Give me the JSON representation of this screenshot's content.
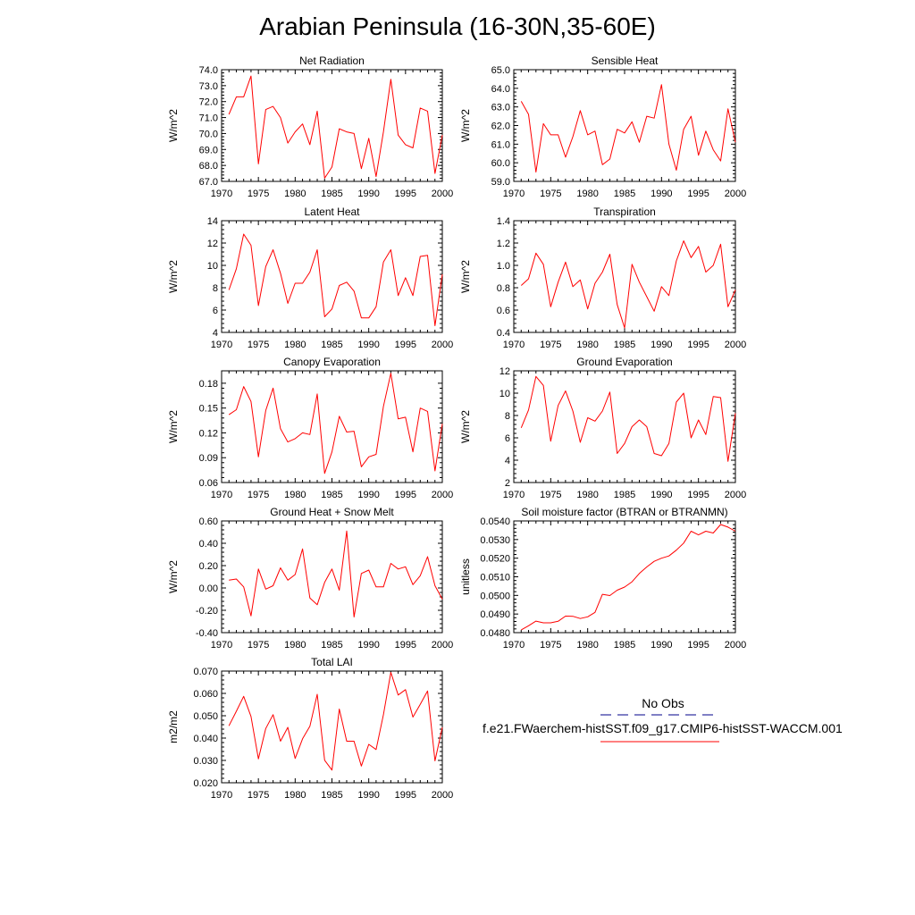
{
  "title": "Arabian Peninsula (16-30N,35-60E)",
  "colors": {
    "model": "#ff0000",
    "obs": "#00008b",
    "axis": "#000000"
  },
  "legend": {
    "obs_label": "No Obs",
    "model_label": "f.e21.FWaerchem-histSST.f09_g17.CMIP6-histSST-WACCM.001"
  },
  "chart_data": [
    {
      "type": "line",
      "title": "Net Radiation",
      "ylabel": "W/m^2",
      "xlim": [
        1970,
        2000
      ],
      "ylim": [
        67.0,
        74.0
      ],
      "xticks": [
        1970,
        1975,
        1980,
        1985,
        1990,
        1995,
        2000
      ],
      "yticks": [
        67.0,
        68.0,
        69.0,
        70.0,
        71.0,
        72.0,
        73.0,
        74.0
      ],
      "ytick_labels": [
        "67.0",
        "68.0",
        "69.0",
        "70.0",
        "71.0",
        "72.0",
        "73.0",
        "74.0"
      ],
      "x": [
        1971,
        1972,
        1973,
        1974,
        1975,
        1976,
        1977,
        1978,
        1979,
        1980,
        1981,
        1982,
        1983,
        1984,
        1985,
        1986,
        1987,
        1988,
        1989,
        1990,
        1991,
        1992,
        1993,
        1994,
        1995,
        1996,
        1997,
        1998,
        1999,
        2000
      ],
      "series": [
        {
          "values": [
            71.2,
            72.3,
            72.3,
            73.6,
            68.1,
            71.5,
            71.7,
            71.0,
            69.4,
            70.1,
            70.6,
            69.3,
            71.4,
            67.2,
            67.9,
            70.3,
            70.1,
            70.0,
            67.8,
            69.7,
            67.3,
            70.1,
            73.4,
            69.9,
            69.3,
            69.1,
            71.6,
            71.4,
            67.5,
            69.9
          ]
        }
      ]
    },
    {
      "type": "line",
      "title": "Sensible Heat",
      "ylabel": "W/m^2",
      "xlim": [
        1970,
        2000
      ],
      "ylim": [
        59.0,
        65.0
      ],
      "xticks": [
        1970,
        1975,
        1980,
        1985,
        1990,
        1995,
        2000
      ],
      "yticks": [
        59.0,
        60.0,
        61.0,
        62.0,
        63.0,
        64.0,
        65.0
      ],
      "ytick_labels": [
        "59.0",
        "60.0",
        "61.0",
        "62.0",
        "63.0",
        "64.0",
        "65.0"
      ],
      "x": [
        1971,
        1972,
        1973,
        1974,
        1975,
        1976,
        1977,
        1978,
        1979,
        1980,
        1981,
        1982,
        1983,
        1984,
        1985,
        1986,
        1987,
        1988,
        1989,
        1990,
        1991,
        1992,
        1993,
        1994,
        1995,
        1996,
        1997,
        1998,
        1999,
        2000
      ],
      "series": [
        {
          "values": [
            63.3,
            62.6,
            59.5,
            62.1,
            61.5,
            61.5,
            60.3,
            61.4,
            62.8,
            61.5,
            61.7,
            59.9,
            60.2,
            61.8,
            61.6,
            62.2,
            61.1,
            62.5,
            62.4,
            64.2,
            61.0,
            59.6,
            61.8,
            62.5,
            60.4,
            61.7,
            60.7,
            60.1,
            62.9,
            61.1
          ]
        }
      ]
    },
    {
      "type": "line",
      "title": "Latent Heat",
      "ylabel": "W/m^2",
      "xlim": [
        1970,
        2000
      ],
      "ylim": [
        4,
        14
      ],
      "xticks": [
        1970,
        1975,
        1980,
        1985,
        1990,
        1995,
        2000
      ],
      "yticks": [
        4,
        6,
        8,
        10,
        12,
        14
      ],
      "ytick_labels": [
        "4",
        "6",
        "8",
        "10",
        "12",
        "14"
      ],
      "x": [
        1971,
        1972,
        1973,
        1974,
        1975,
        1976,
        1977,
        1978,
        1979,
        1980,
        1981,
        1982,
        1983,
        1984,
        1985,
        1986,
        1987,
        1988,
        1989,
        1990,
        1991,
        1992,
        1993,
        1994,
        1995,
        1996,
        1997,
        1998,
        1999,
        2000
      ],
      "series": [
        {
          "values": [
            7.8,
            9.7,
            12.8,
            11.8,
            6.4,
            9.9,
            11.4,
            9.3,
            6.6,
            8.4,
            8.4,
            9.4,
            11.4,
            5.4,
            6.1,
            8.2,
            8.5,
            7.7,
            5.3,
            5.3,
            6.3,
            10.3,
            11.4,
            7.3,
            8.9,
            7.3,
            10.8,
            10.9,
            4.6,
            9.2
          ]
        }
      ]
    },
    {
      "type": "line",
      "title": "Transpiration",
      "ylabel": "W/m^2",
      "xlim": [
        1970,
        2000
      ],
      "ylim": [
        0.4,
        1.4
      ],
      "xticks": [
        1970,
        1975,
        1980,
        1985,
        1990,
        1995,
        2000
      ],
      "yticks": [
        0.4,
        0.6,
        0.8,
        1.0,
        1.2,
        1.4
      ],
      "ytick_labels": [
        "0.4",
        "0.6",
        "0.8",
        "1.0",
        "1.2",
        "1.4"
      ],
      "x": [
        1971,
        1972,
        1973,
        1974,
        1975,
        1976,
        1977,
        1978,
        1979,
        1980,
        1981,
        1982,
        1983,
        1984,
        1985,
        1986,
        1987,
        1988,
        1989,
        1990,
        1991,
        1992,
        1993,
        1994,
        1995,
        1996,
        1997,
        1998,
        1999,
        2000
      ],
      "series": [
        {
          "values": [
            0.82,
            0.88,
            1.11,
            1.01,
            0.63,
            0.85,
            1.03,
            0.81,
            0.87,
            0.61,
            0.84,
            0.94,
            1.1,
            0.65,
            0.44,
            1.01,
            0.85,
            0.72,
            0.59,
            0.81,
            0.73,
            1.04,
            1.22,
            1.07,
            1.17,
            0.94,
            1.0,
            1.19,
            0.63,
            0.78
          ]
        }
      ]
    },
    {
      "type": "line",
      "title": "Canopy Evaporation",
      "ylabel": "W/m^2",
      "xlim": [
        1970,
        2000
      ],
      "ylim": [
        0.06,
        0.195
      ],
      "xticks": [
        1970,
        1975,
        1980,
        1985,
        1990,
        1995,
        2000
      ],
      "yticks": [
        0.06,
        0.09,
        0.12,
        0.15,
        0.18
      ],
      "ytick_labels": [
        "0.06",
        "0.09",
        "0.12",
        "0.15",
        "0.18"
      ],
      "x": [
        1971,
        1972,
        1973,
        1974,
        1975,
        1976,
        1977,
        1978,
        1979,
        1980,
        1981,
        1982,
        1983,
        1984,
        1985,
        1986,
        1987,
        1988,
        1989,
        1990,
        1991,
        1992,
        1993,
        1994,
        1995,
        1996,
        1997,
        1998,
        1999,
        2000
      ],
      "series": [
        {
          "values": [
            0.142,
            0.148,
            0.176,
            0.158,
            0.091,
            0.147,
            0.174,
            0.125,
            0.109,
            0.113,
            0.12,
            0.118,
            0.167,
            0.071,
            0.097,
            0.14,
            0.121,
            0.122,
            0.079,
            0.091,
            0.094,
            0.152,
            0.192,
            0.137,
            0.139,
            0.097,
            0.15,
            0.146,
            0.074,
            0.131
          ]
        }
      ]
    },
    {
      "type": "line",
      "title": "Ground Evaporation",
      "ylabel": "W/m^2",
      "xlim": [
        1970,
        2000
      ],
      "ylim": [
        2,
        12
      ],
      "xticks": [
        1970,
        1975,
        1980,
        1985,
        1990,
        1995,
        2000
      ],
      "yticks": [
        2,
        4,
        6,
        8,
        10,
        12
      ],
      "ytick_labels": [
        "2",
        "4",
        "6",
        "8",
        "10",
        "12"
      ],
      "x": [
        1971,
        1972,
        1973,
        1974,
        1975,
        1976,
        1977,
        1978,
        1979,
        1980,
        1981,
        1982,
        1983,
        1984,
        1985,
        1986,
        1987,
        1988,
        1989,
        1990,
        1991,
        1992,
        1993,
        1994,
        1995,
        1996,
        1997,
        1998,
        1999,
        2000
      ],
      "series": [
        {
          "values": [
            6.9,
            8.5,
            11.5,
            10.7,
            5.7,
            8.9,
            10.2,
            8.4,
            5.6,
            7.8,
            7.5,
            8.4,
            10.1,
            4.6,
            5.5,
            7.0,
            7.6,
            7.0,
            4.6,
            4.4,
            5.5,
            9.2,
            10.0,
            6.0,
            7.6,
            6.3,
            9.7,
            9.6,
            3.9,
            8.2
          ]
        }
      ]
    },
    {
      "type": "line",
      "title": "Ground Heat + Snow Melt",
      "ylabel": "W/m^2",
      "xlim": [
        1970,
        2000
      ],
      "ylim": [
        -0.4,
        0.6
      ],
      "xticks": [
        1970,
        1975,
        1980,
        1985,
        1990,
        1995,
        2000
      ],
      "yticks": [
        -0.4,
        -0.2,
        0.0,
        0.2,
        0.4,
        0.6
      ],
      "ytick_labels": [
        "-0.40",
        "-0.20",
        "0.00",
        "0.20",
        "0.40",
        "0.60"
      ],
      "x": [
        1971,
        1972,
        1973,
        1974,
        1975,
        1976,
        1977,
        1978,
        1979,
        1980,
        1981,
        1982,
        1983,
        1984,
        1985,
        1986,
        1987,
        1988,
        1989,
        1990,
        1991,
        1992,
        1993,
        1994,
        1995,
        1996,
        1997,
        1998,
        1999,
        2000
      ],
      "series": [
        {
          "values": [
            0.07,
            0.08,
            0.01,
            -0.25,
            0.17,
            -0.01,
            0.02,
            0.18,
            0.07,
            0.12,
            0.35,
            -0.09,
            -0.15,
            0.05,
            0.17,
            -0.02,
            0.51,
            -0.26,
            0.13,
            0.16,
            0.01,
            0.01,
            0.22,
            0.17,
            0.19,
            0.03,
            0.11,
            0.28,
            0.02,
            -0.1
          ]
        }
      ]
    },
    {
      "type": "line",
      "title": "Soil moisture factor (BTRAN or BTRANMN)",
      "ylabel": "unitless",
      "xlim": [
        1970,
        2000
      ],
      "ylim": [
        0.048,
        0.054
      ],
      "xticks": [
        1970,
        1975,
        1980,
        1985,
        1990,
        1995,
        2000
      ],
      "yticks": [
        0.048,
        0.049,
        0.05,
        0.051,
        0.052,
        0.053,
        0.054
      ],
      "ytick_labels": [
        "0.0480",
        "0.0490",
        "0.0500",
        "0.0510",
        "0.0520",
        "0.0530",
        "0.0540"
      ],
      "x": [
        1971,
        1972,
        1973,
        1974,
        1975,
        1976,
        1977,
        1978,
        1979,
        1980,
        1981,
        1982,
        1983,
        1984,
        1985,
        1986,
        1987,
        1988,
        1989,
        1990,
        1991,
        1992,
        1993,
        1994,
        1995,
        1996,
        1997,
        1998,
        1999,
        2000
      ],
      "series": [
        {
          "values": [
            0.04815,
            0.04837,
            0.04862,
            0.04853,
            0.04853,
            0.04861,
            0.04889,
            0.04888,
            0.04876,
            0.04885,
            0.04909,
            0.05006,
            0.04999,
            0.05028,
            0.05045,
            0.05073,
            0.05118,
            0.05153,
            0.05183,
            0.052,
            0.05212,
            0.05243,
            0.05281,
            0.05345,
            0.05325,
            0.05345,
            0.05335,
            0.05381,
            0.05367,
            0.05345
          ]
        }
      ]
    },
    {
      "type": "line",
      "title": "Total LAI",
      "ylabel": "m2/m2",
      "xlim": [
        1970,
        2000
      ],
      "ylim": [
        0.02,
        0.07
      ],
      "xticks": [
        1970,
        1975,
        1980,
        1985,
        1990,
        1995,
        2000
      ],
      "yticks": [
        0.02,
        0.03,
        0.04,
        0.05,
        0.06,
        0.07
      ],
      "ytick_labels": [
        "0.020",
        "0.030",
        "0.040",
        "0.050",
        "0.060",
        "0.070"
      ],
      "x": [
        1971,
        1972,
        1973,
        1974,
        1975,
        1976,
        1977,
        1978,
        1979,
        1980,
        1981,
        1982,
        1983,
        1984,
        1985,
        1986,
        1987,
        1988,
        1989,
        1990,
        1991,
        1992,
        1993,
        1994,
        1995,
        1996,
        1997,
        1998,
        1999,
        2000
      ],
      "series": [
        {
          "values": [
            0.0455,
            0.052,
            0.0587,
            0.0497,
            0.0307,
            0.0443,
            0.0505,
            0.0386,
            0.0448,
            0.0309,
            0.0397,
            0.0453,
            0.0596,
            0.0301,
            0.0257,
            0.053,
            0.0386,
            0.0386,
            0.0275,
            0.0372,
            0.0349,
            0.0505,
            0.0694,
            0.0593,
            0.0617,
            0.0494,
            0.0551,
            0.0611,
            0.0298,
            0.0448
          ]
        }
      ]
    }
  ]
}
